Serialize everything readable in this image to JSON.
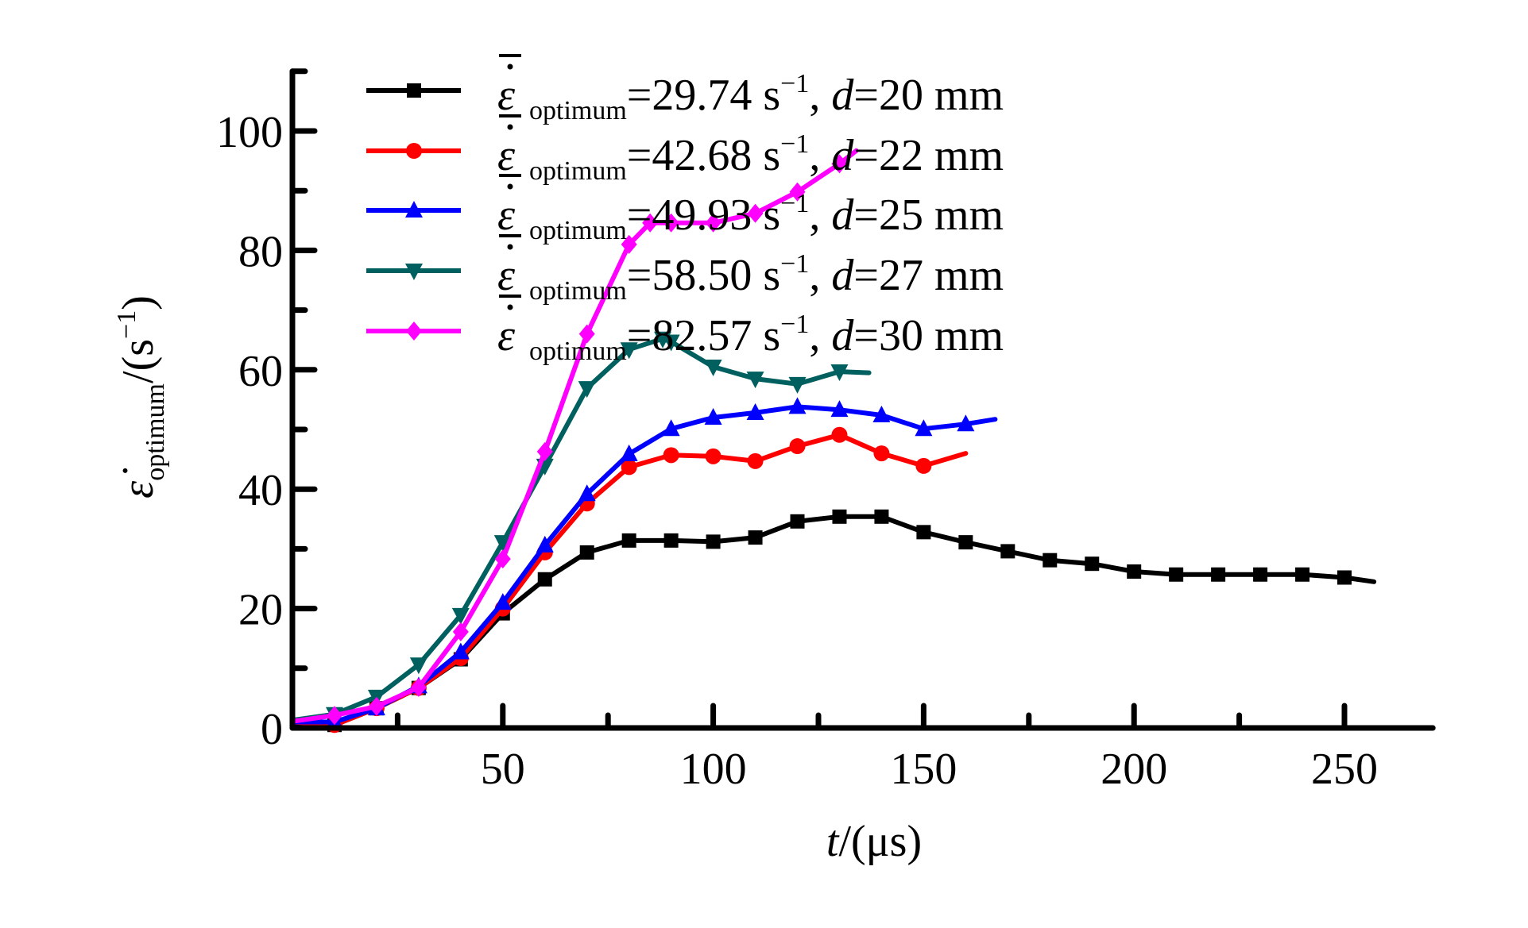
{
  "chart_data": {
    "type": "line",
    "title": "",
    "xlabel": "t/(μs)",
    "xlabel_parts": {
      "var": "t",
      "rest": "/(μs)"
    },
    "ylabel": "ε̇optimum/(s−1)",
    "ylabel_parts": {
      "symbol": "ε̇",
      "sub": "optimum",
      "unit_open": "/(s",
      "sup": "−1",
      "unit_close": ")"
    },
    "xlim": [
      0,
      271
    ],
    "ylim": [
      0,
      110
    ],
    "x_ticks_major": [
      50,
      100,
      150,
      200,
      250
    ],
    "x_ticks_minor": [
      25,
      75,
      125,
      175,
      225
    ],
    "x_tick_labels": [
      "50",
      "100",
      "150",
      "200",
      "250"
    ],
    "y_ticks_major": [
      0,
      20,
      40,
      60,
      80,
      100
    ],
    "y_ticks_minor": [
      10,
      30,
      50,
      70,
      90,
      110
    ],
    "y_tick_labels": [
      "0",
      "20",
      "40",
      "60",
      "80",
      "100"
    ],
    "grid": false,
    "legend_position": "top-center",
    "series": [
      {
        "name": "ε̄̇optimum=29.74 s−1, d=20 mm",
        "legend": {
          "sub": "optimum",
          "value": "=29.74 s",
          "sup": "−1",
          "sep": ", ",
          "dvar": "d",
          "dval": "=20 mm"
        },
        "color": "#000000",
        "marker": "square",
        "x": [
          0,
          10,
          20,
          30,
          40,
          50,
          60,
          70,
          80,
          90,
          100,
          110,
          120,
          130,
          140,
          150,
          160,
          170,
          180,
          190,
          200,
          210,
          220,
          230,
          240,
          250,
          257
        ],
        "y": [
          0.5,
          0.5,
          3.3,
          6.7,
          11.5,
          19.2,
          24.9,
          29.4,
          31.4,
          31.4,
          31.2,
          31.9,
          34.6,
          35.4,
          35.4,
          32.8,
          31.1,
          29.6,
          28.1,
          27.5,
          26.2,
          25.7,
          25.7,
          25.7,
          25.7,
          25.2,
          24.5
        ]
      },
      {
        "name": "ε̄̇optimum=42.68 s−1, d=22 mm",
        "legend": {
          "sub": "optimum",
          "value": "=42.68 s",
          "sup": "−1",
          "sep": ", ",
          "dvar": "d",
          "dval": "=22 mm"
        },
        "color": "#ff0000",
        "marker": "circle",
        "x": [
          0,
          10,
          20,
          30,
          40,
          50,
          60,
          70,
          80,
          90,
          100,
          110,
          120,
          130,
          140,
          150,
          160
        ],
        "y": [
          1.0,
          0.5,
          3.3,
          6.7,
          11.7,
          20.0,
          29.4,
          37.6,
          43.7,
          45.7,
          45.5,
          44.7,
          47.2,
          49.1,
          46.0,
          43.9,
          46.0
        ]
      },
      {
        "name": "ε̄̇optimum=49.93 s−1, d=25 mm",
        "legend": {
          "sub": "optimum",
          "value": "=49.93 s",
          "sup": "−1",
          "sep": ", ",
          "dvar": "d",
          "dval": "=25 mm"
        },
        "color": "#0000ff",
        "marker": "triangle-up",
        "x": [
          0,
          10,
          20,
          30,
          40,
          50,
          60,
          70,
          80,
          90,
          100,
          110,
          120,
          130,
          140,
          150,
          160,
          167
        ],
        "y": [
          1.0,
          1.0,
          3.3,
          7.0,
          12.7,
          21.0,
          30.6,
          39.2,
          45.9,
          50.1,
          52.0,
          52.8,
          53.8,
          53.3,
          52.4,
          50.1,
          50.9,
          51.7
        ]
      },
      {
        "name": "ε̄̇optimum=58.50 s−1, d=27 mm",
        "legend": {
          "sub": "optimum",
          "value": "=58.50 s",
          "sup": "−1",
          "sep": ", ",
          "dvar": "d",
          "dval": "=27 mm"
        },
        "color": "#005f5f",
        "marker": "triangle-down",
        "x": [
          0,
          10,
          20,
          30,
          40,
          50,
          60,
          70,
          80,
          88,
          90,
          100,
          110,
          120,
          130,
          137
        ],
        "y": [
          1.3,
          2.3,
          5.2,
          10.6,
          18.9,
          31.1,
          43.9,
          56.9,
          63.4,
          65.2,
          64.7,
          60.5,
          58.5,
          57.6,
          59.7,
          59.5
        ]
      },
      {
        "name": "ε̄̇optimum=82.57 s−1, d=30 mm",
        "legend": {
          "sub": "optimum",
          "value": "=82.57 s",
          "sup": "−1",
          "sep": ", ",
          "dvar": "d",
          "dval": "=30 mm"
        },
        "color": "#ff00ff",
        "marker": "diamond",
        "x": [
          0,
          10,
          20,
          30,
          40,
          50,
          60,
          70,
          80,
          85,
          90,
          100,
          110,
          120,
          130,
          134
        ],
        "y": [
          1.1,
          2.1,
          3.6,
          6.8,
          16.1,
          28.3,
          46.3,
          66.0,
          81.0,
          84.6,
          84.6,
          84.6,
          86.2,
          89.8,
          94.5,
          96.7
        ]
      }
    ]
  }
}
